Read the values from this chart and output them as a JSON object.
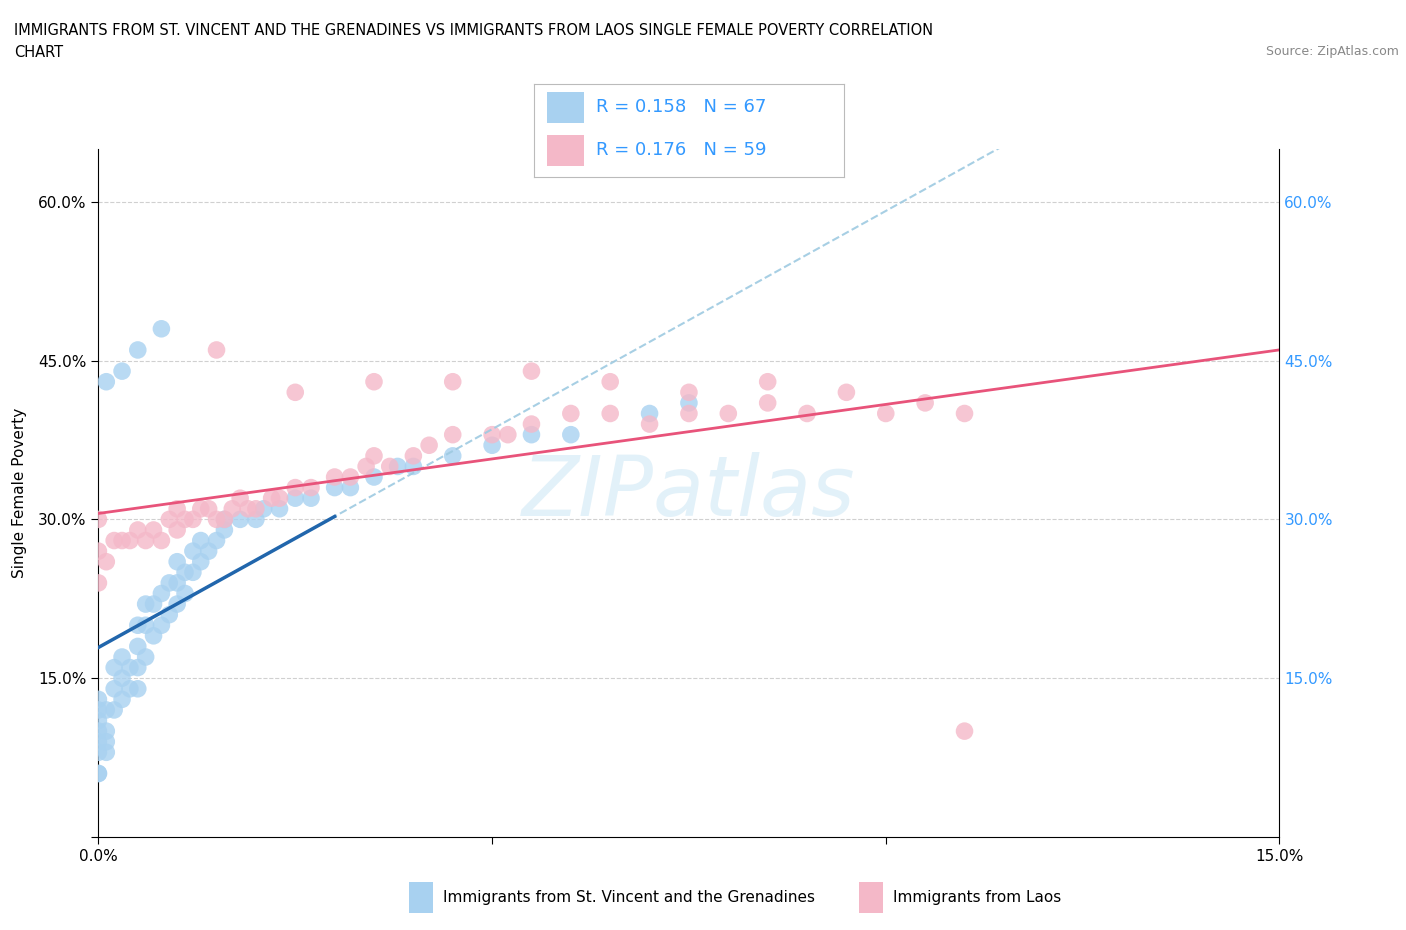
{
  "title_line1": "IMMIGRANTS FROM ST. VINCENT AND THE GRENADINES VS IMMIGRANTS FROM LAOS SINGLE FEMALE POVERTY CORRELATION",
  "title_line2": "CHART",
  "source_text": "Source: ZipAtlas.com",
  "ylabel": "Single Female Poverty",
  "x_min": 0.0,
  "x_max": 0.15,
  "y_min": 0.0,
  "y_max": 0.65,
  "x_ticks": [
    0.0,
    0.05,
    0.1,
    0.15
  ],
  "x_tick_labels": [
    "0.0%",
    "",
    "",
    "15.0%"
  ],
  "y_ticks": [
    0.0,
    0.15,
    0.3,
    0.45,
    0.6
  ],
  "y_tick_labels": [
    "",
    "15.0%",
    "30.0%",
    "45.0%",
    "60.0%"
  ],
  "right_y_tick_labels": [
    "",
    "15.0%",
    "30.0%",
    "45.0%",
    "60.0%"
  ],
  "gridline_y": [
    0.15,
    0.3,
    0.45,
    0.6
  ],
  "series1_color": "#a8d1f0",
  "series2_color": "#f4b8c8",
  "series1_label": "Immigrants from St. Vincent and the Grenadines",
  "series2_label": "Immigrants from Laos",
  "R1": 0.158,
  "N1": 67,
  "R2": 0.176,
  "N2": 59,
  "trend1_solid_color": "#2166ac",
  "trend1_dashed_color": "#9ecae1",
  "trend2_color": "#e8537a",
  "watermark": "ZIPatlas",
  "legend_color": "#3399ff",
  "s1_x": [
    0.0,
    0.0,
    0.0,
    0.0,
    0.0,
    0.0,
    0.0,
    0.0,
    0.001,
    0.001,
    0.001,
    0.001,
    0.002,
    0.002,
    0.002,
    0.003,
    0.003,
    0.003,
    0.004,
    0.004,
    0.005,
    0.005,
    0.005,
    0.005,
    0.006,
    0.006,
    0.006,
    0.007,
    0.007,
    0.008,
    0.008,
    0.009,
    0.009,
    0.01,
    0.01,
    0.01,
    0.011,
    0.011,
    0.012,
    0.012,
    0.013,
    0.013,
    0.014,
    0.015,
    0.016,
    0.016,
    0.018,
    0.02,
    0.021,
    0.023,
    0.025,
    0.027,
    0.03,
    0.032,
    0.035,
    0.038,
    0.04,
    0.045,
    0.05,
    0.055,
    0.06,
    0.07,
    0.075,
    0.001,
    0.003,
    0.005,
    0.008
  ],
  "s1_y": [
    0.06,
    0.08,
    0.09,
    0.1,
    0.11,
    0.12,
    0.13,
    0.06,
    0.08,
    0.09,
    0.1,
    0.12,
    0.12,
    0.14,
    0.16,
    0.13,
    0.15,
    0.17,
    0.14,
    0.16,
    0.14,
    0.16,
    0.18,
    0.2,
    0.17,
    0.2,
    0.22,
    0.19,
    0.22,
    0.2,
    0.23,
    0.21,
    0.24,
    0.22,
    0.24,
    0.26,
    0.23,
    0.25,
    0.25,
    0.27,
    0.26,
    0.28,
    0.27,
    0.28,
    0.29,
    0.3,
    0.3,
    0.3,
    0.31,
    0.31,
    0.32,
    0.32,
    0.33,
    0.33,
    0.34,
    0.35,
    0.35,
    0.36,
    0.37,
    0.38,
    0.38,
    0.4,
    0.41,
    0.43,
    0.44,
    0.46,
    0.48
  ],
  "s2_x": [
    0.0,
    0.0,
    0.0,
    0.001,
    0.002,
    0.003,
    0.004,
    0.005,
    0.006,
    0.007,
    0.008,
    0.009,
    0.01,
    0.01,
    0.011,
    0.012,
    0.013,
    0.014,
    0.015,
    0.016,
    0.017,
    0.018,
    0.019,
    0.02,
    0.022,
    0.023,
    0.025,
    0.027,
    0.03,
    0.032,
    0.034,
    0.035,
    0.037,
    0.04,
    0.042,
    0.045,
    0.05,
    0.052,
    0.055,
    0.06,
    0.065,
    0.07,
    0.075,
    0.08,
    0.085,
    0.09,
    0.1,
    0.105,
    0.11,
    0.015,
    0.025,
    0.035,
    0.045,
    0.055,
    0.065,
    0.075,
    0.085,
    0.095,
    0.11
  ],
  "s2_y": [
    0.24,
    0.27,
    0.3,
    0.26,
    0.28,
    0.28,
    0.28,
    0.29,
    0.28,
    0.29,
    0.28,
    0.3,
    0.29,
    0.31,
    0.3,
    0.3,
    0.31,
    0.31,
    0.3,
    0.3,
    0.31,
    0.32,
    0.31,
    0.31,
    0.32,
    0.32,
    0.33,
    0.33,
    0.34,
    0.34,
    0.35,
    0.36,
    0.35,
    0.36,
    0.37,
    0.38,
    0.38,
    0.38,
    0.39,
    0.4,
    0.4,
    0.39,
    0.4,
    0.4,
    0.41,
    0.4,
    0.4,
    0.41,
    0.4,
    0.46,
    0.42,
    0.43,
    0.43,
    0.44,
    0.43,
    0.42,
    0.43,
    0.42,
    0.1
  ]
}
